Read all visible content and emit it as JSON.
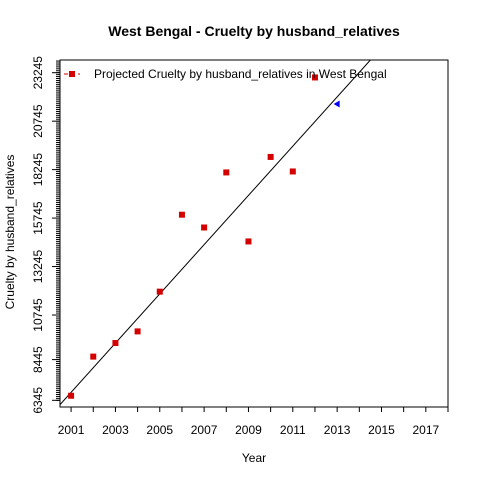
{
  "chart_data": {
    "type": "scatter",
    "title": "West Bengal  -  Cruelty by husband_relatives",
    "xlabel": "Year",
    "ylabel": "Cruelty by husband_relatives",
    "xlim": [
      2000.5,
      2018.0
    ],
    "ylim": [
      6000,
      23900
    ],
    "x_ticks": [
      "2001",
      "2003",
      "2005",
      "2007",
      "2009",
      "2011",
      "2013",
      "2015",
      "2017"
    ],
    "x_tick_values": [
      2001,
      2003,
      2005,
      2007,
      2009,
      2011,
      2013,
      2015,
      2017
    ],
    "y_ticks": [
      "6345",
      "8445",
      "10745",
      "13245",
      "15745",
      "18245",
      "20745",
      "23245"
    ],
    "y_tick_values": [
      6345,
      8445,
      10745,
      13245,
      15745,
      18245,
      20745,
      23245
    ],
    "y_minor_tick_step": 100,
    "grid": false,
    "legend": {
      "position": "top-left",
      "label": "Projected  Cruelty by husband_relatives  in  West Bengal"
    },
    "series": [
      {
        "kind": "points",
        "color": "#d40000",
        "marker": "square",
        "x": [
          2001,
          2002,
          2003,
          2004,
          2005,
          2006,
          2007,
          2008,
          2009,
          2010,
          2011,
          2012
        ],
        "y": [
          6580,
          8600,
          9300,
          9900,
          11950,
          15920,
          15260,
          18100,
          14540,
          18900,
          18150,
          23000
        ]
      },
      {
        "kind": "projected",
        "color": "#0000ff",
        "marker": "triangle",
        "x": [
          2013
        ],
        "y": [
          21630
        ]
      },
      {
        "kind": "trend-line",
        "color": "#000000",
        "x": [
          2000.5,
          2014.5
        ],
        "y": [
          6120,
          23900
        ]
      }
    ]
  }
}
